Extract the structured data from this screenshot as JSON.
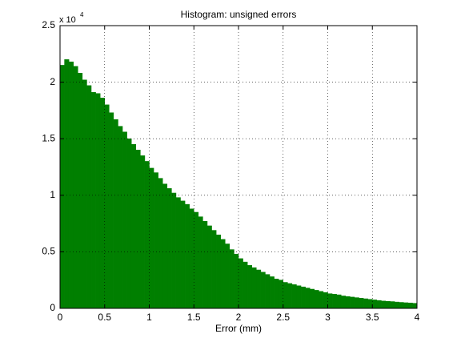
{
  "chart_data": {
    "type": "histogram",
    "title": "Histogram: unsigned errors",
    "x_label": "Error (mm)",
    "y_multiplier": "x 10",
    "y_exponent": "4",
    "color": "#007f00",
    "bins": [
      0,
      0.05,
      0.1,
      0.15,
      0.2,
      0.25,
      0.3,
      0.35,
      0.4,
      0.45,
      0.5,
      0.55,
      0.6,
      0.65,
      0.7,
      0.75,
      0.8,
      0.85,
      0.9,
      0.95,
      1,
      1.05,
      1.1,
      1.15,
      1.2,
      1.25,
      1.3,
      1.35,
      1.4,
      1.45,
      1.5,
      1.55,
      1.6,
      1.65,
      1.7,
      1.75,
      1.8,
      1.85,
      1.9,
      1.95,
      2,
      2.05,
      2.1,
      2.15,
      2.2,
      2.25,
      2.3,
      2.35,
      2.4,
      2.45,
      2.5,
      2.55,
      2.6,
      2.65,
      2.7,
      2.75,
      2.8,
      2.85,
      2.9,
      2.95,
      3,
      3.05,
      3.1,
      3.15,
      3.2,
      3.25,
      3.3,
      3.35,
      3.4,
      3.45,
      3.5,
      3.55,
      3.6,
      3.65,
      3.7,
      3.75,
      3.8,
      3.85,
      3.9,
      3.95,
      4
    ],
    "values": [
      21500,
      22000,
      21800,
      21400,
      20800,
      20200,
      19700,
      19100,
      19000,
      18600,
      18000,
      17300,
      16700,
      16100,
      15600,
      15000,
      14500,
      14000,
      13500,
      13000,
      12400,
      12000,
      11500,
      11000,
      10600,
      10200,
      9800,
      9500,
      9200,
      8800,
      8500,
      8100,
      7700,
      7300,
      6900,
      6500,
      6100,
      5700,
      5200,
      4800,
      4400,
      4100,
      3800,
      3600,
      3400,
      3200,
      3000,
      2800,
      2600,
      2500,
      2300,
      2200,
      2100,
      2000,
      1900,
      1800,
      1700,
      1600,
      1500,
      1400,
      1300,
      1250,
      1200,
      1100,
      1050,
      1000,
      950,
      900,
      850,
      800,
      750,
      700,
      650,
      620,
      600,
      560,
      530,
      500,
      480,
      450
    ],
    "xlim": [
      0,
      4
    ],
    "xticks": [
      0,
      0.5,
      1,
      1.5,
      2,
      2.5,
      3,
      3.5,
      4
    ],
    "ylim": [
      0,
      25000
    ],
    "yticks": [
      0,
      {
        "value": 5000,
        "label": "0.5"
      },
      {
        "value": 10000,
        "label": "1"
      },
      {
        "value": 15000,
        "label": "1.5"
      },
      {
        "value": 20000,
        "label": "2"
      },
      {
        "value": 25000,
        "label": "2.5"
      }
    ],
    "grid": true
  }
}
